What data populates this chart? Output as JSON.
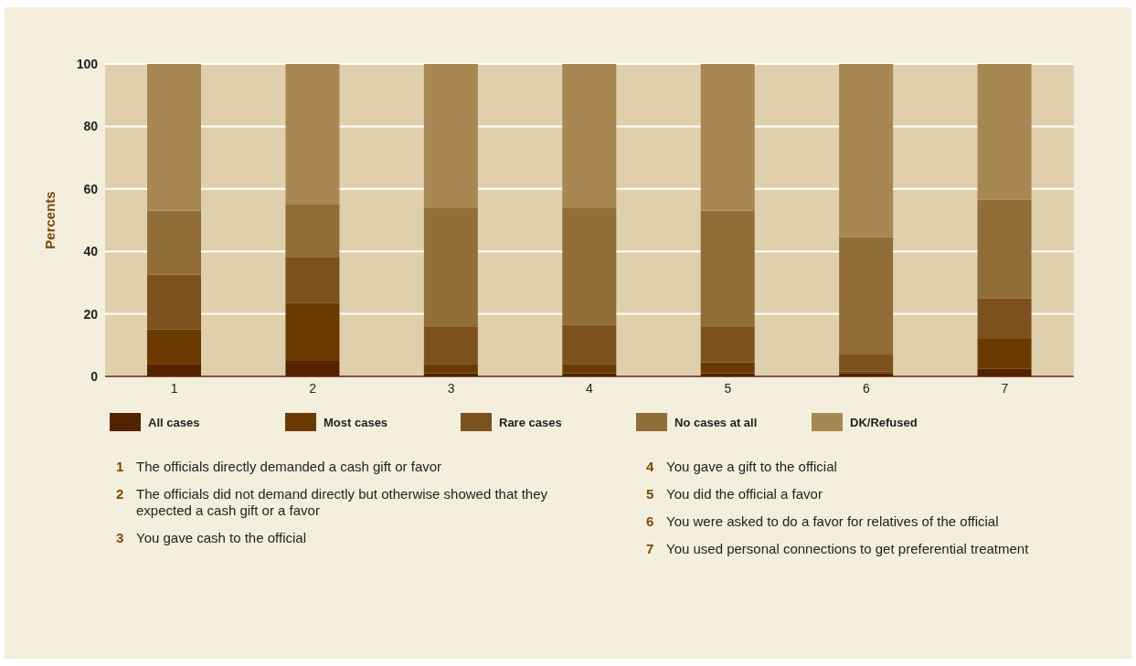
{
  "chart_data": {
    "type": "bar",
    "stacked": true,
    "ylabel": "Percents",
    "categories": [
      "1",
      "2",
      "3",
      "4",
      "5",
      "6",
      "7"
    ],
    "series": [
      {
        "name": "All cases",
        "color": "#552200",
        "values": [
          4,
          5,
          1,
          1,
          1,
          1,
          2.5
        ]
      },
      {
        "name": "Most cases",
        "color": "#6b3a00",
        "values": [
          11,
          18.5,
          3,
          3,
          3.5,
          0.5,
          9.5
        ]
      },
      {
        "name": "Rare cases",
        "color": "#7d511e",
        "values": [
          17.5,
          14.5,
          12,
          12.5,
          11.5,
          5.5,
          13
        ]
      },
      {
        "name": "No cases at all",
        "color": "#916d38",
        "values": [
          20.5,
          17,
          38,
          37.5,
          37,
          37.5,
          31.5
        ]
      },
      {
        "name": "DK/Refused",
        "color": "#a88852",
        "values": [
          47,
          45,
          46,
          46,
          47,
          55.5,
          43.5
        ]
      }
    ],
    "ylim": [
      0,
      100
    ],
    "yticks": [
      0,
      20,
      40,
      60,
      80,
      100
    ],
    "grid": "y",
    "legend": "bottom",
    "annotations": [
      "1 The officials directly demanded a cash gift or favor",
      "2 The officials did not demand directly but otherwise showed that they expected a cash gift or a favor",
      "3 You gave cash to the official",
      "4 You gave a gift to the official",
      "5 You did the official a favor",
      "6 You were asked to do a favor for relatives of the official",
      "7 You used personal connections to get preferential treatment"
    ]
  }
}
